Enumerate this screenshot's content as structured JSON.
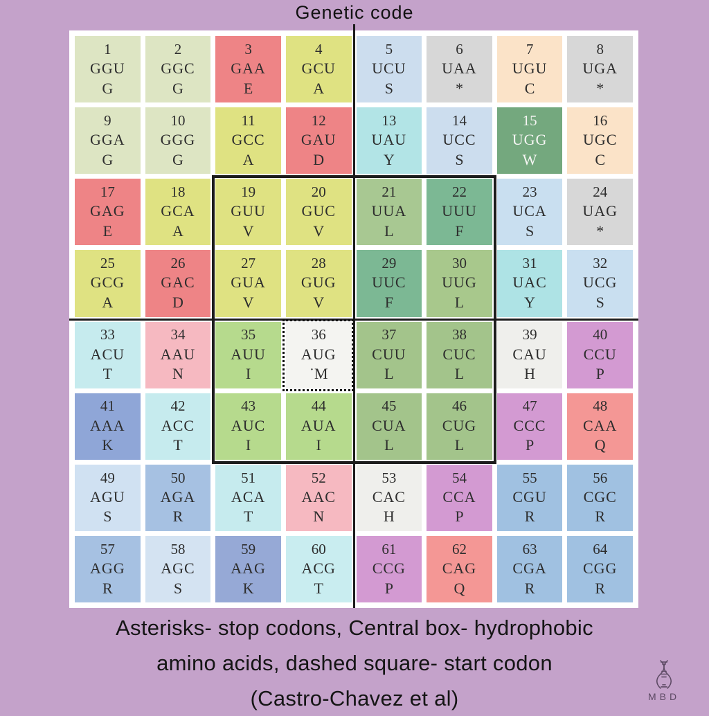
{
  "title": "Genetic code",
  "caption": {
    "line1": "Asterisks- stop codons, Central box- hydrophobic",
    "line2": "amino acids, dashed square- start codon",
    "line3": "(Castro-Chavez et al)"
  },
  "logo": {
    "text": "MBD",
    "icon": "dna-helix-icon"
  },
  "colors": {
    "background": "#c4a2ca",
    "panel": "#ffffff",
    "cell_text": "#2e2e2e",
    "outline": "#1c1c1c"
  },
  "grid": {
    "rows": 8,
    "cols": 8,
    "cells": [
      {
        "n": 1,
        "codon": "GGU",
        "aa": "G",
        "bg": "#dde5c3"
      },
      {
        "n": 2,
        "codon": "GGC",
        "aa": "G",
        "bg": "#dde5c3"
      },
      {
        "n": 3,
        "codon": "GAA",
        "aa": "E",
        "bg": "#ee8486"
      },
      {
        "n": 4,
        "codon": "GCU",
        "aa": "A",
        "bg": "#dfe282"
      },
      {
        "n": 5,
        "codon": "UCU",
        "aa": "S",
        "bg": "#ccddee"
      },
      {
        "n": 6,
        "codon": "UAA",
        "aa": "*",
        "bg": "#d7d7d7"
      },
      {
        "n": 7,
        "codon": "UGU",
        "aa": "C",
        "bg": "#fbe3c8"
      },
      {
        "n": 8,
        "codon": "UGA",
        "aa": "*",
        "bg": "#d7d7d7"
      },
      {
        "n": 9,
        "codon": "GGA",
        "aa": "G",
        "bg": "#dde5c3"
      },
      {
        "n": 10,
        "codon": "GGG",
        "aa": "G",
        "bg": "#dde5c3"
      },
      {
        "n": 11,
        "codon": "GCC",
        "aa": "A",
        "bg": "#dfe282"
      },
      {
        "n": 12,
        "codon": "GAU",
        "aa": "D",
        "bg": "#ee8486"
      },
      {
        "n": 13,
        "codon": "UAU",
        "aa": "Y",
        "bg": "#b2e4e6"
      },
      {
        "n": 14,
        "codon": "UCC",
        "aa": "S",
        "bg": "#ccddee"
      },
      {
        "n": 15,
        "codon": "UGG",
        "aa": "W",
        "bg": "#74a87e",
        "light_text": true
      },
      {
        "n": 16,
        "codon": "UGC",
        "aa": "C",
        "bg": "#fbe3c8"
      },
      {
        "n": 17,
        "codon": "GAG",
        "aa": "E",
        "bg": "#ee8486"
      },
      {
        "n": 18,
        "codon": "GCA",
        "aa": "A",
        "bg": "#dfe282"
      },
      {
        "n": 19,
        "codon": "GUU",
        "aa": "V",
        "bg": "#dfe282"
      },
      {
        "n": 20,
        "codon": "GUC",
        "aa": "V",
        "bg": "#dfe282"
      },
      {
        "n": 21,
        "codon": "UUA",
        "aa": "L",
        "bg": "#a8c892"
      },
      {
        "n": 22,
        "codon": "UUU",
        "aa": "F",
        "bg": "#7cb894"
      },
      {
        "n": 23,
        "codon": "UCA",
        "aa": "S",
        "bg": "#c9dff0"
      },
      {
        "n": 24,
        "codon": "UAG",
        "aa": "*",
        "bg": "#d7d7d7"
      },
      {
        "n": 25,
        "codon": "GCG",
        "aa": "A",
        "bg": "#dfe282"
      },
      {
        "n": 26,
        "codon": "GAC",
        "aa": "D",
        "bg": "#ee8486"
      },
      {
        "n": 27,
        "codon": "GUA",
        "aa": "V",
        "bg": "#dfe282"
      },
      {
        "n": 28,
        "codon": "GUG",
        "aa": "V",
        "bg": "#dfe282"
      },
      {
        "n": 29,
        "codon": "UUC",
        "aa": "F",
        "bg": "#7cb894"
      },
      {
        "n": 30,
        "codon": "UUG",
        "aa": "L",
        "bg": "#a8c88c"
      },
      {
        "n": 31,
        "codon": "UAC",
        "aa": "Y",
        "bg": "#aee3e5"
      },
      {
        "n": 32,
        "codon": "UCG",
        "aa": "S",
        "bg": "#c9dff0"
      },
      {
        "n": 33,
        "codon": "ACU",
        "aa": "T",
        "bg": "#c6ebee"
      },
      {
        "n": 34,
        "codon": "AAU",
        "aa": "N",
        "bg": "#f6b9c1"
      },
      {
        "n": 35,
        "codon": "AUU",
        "aa": "I",
        "bg": "#b6da8d"
      },
      {
        "n": 36,
        "codon": "AUG",
        "aa": "˙M",
        "bg": "#f4f4f1",
        "start_codon": true
      },
      {
        "n": 37,
        "codon": "CUU",
        "aa": "L",
        "bg": "#a3c48b"
      },
      {
        "n": 38,
        "codon": "CUC",
        "aa": "L",
        "bg": "#a3c48b"
      },
      {
        "n": 39,
        "codon": "CAU",
        "aa": "H",
        "bg": "#efefec"
      },
      {
        "n": 40,
        "codon": "CCU",
        "aa": "P",
        "bg": "#d39ad2"
      },
      {
        "n": 41,
        "codon": "AAA",
        "aa": "K",
        "bg": "#8fa6d7"
      },
      {
        "n": 42,
        "codon": "ACC",
        "aa": "T",
        "bg": "#c6ebee"
      },
      {
        "n": 43,
        "codon": "AUC",
        "aa": "I",
        "bg": "#b6da8d"
      },
      {
        "n": 44,
        "codon": "AUA",
        "aa": "I",
        "bg": "#b6da8d"
      },
      {
        "n": 45,
        "codon": "CUA",
        "aa": "L",
        "bg": "#a3c48b"
      },
      {
        "n": 46,
        "codon": "CUG",
        "aa": "L",
        "bg": "#a3c48b"
      },
      {
        "n": 47,
        "codon": "CCC",
        "aa": "P",
        "bg": "#d39ad2"
      },
      {
        "n": 48,
        "codon": "CAA",
        "aa": "Q",
        "bg": "#f49795"
      },
      {
        "n": 49,
        "codon": "AGU",
        "aa": "S",
        "bg": "#d0e1f2"
      },
      {
        "n": 50,
        "codon": "AGA",
        "aa": "R",
        "bg": "#a6c1e2"
      },
      {
        "n": 51,
        "codon": "ACA",
        "aa": "T",
        "bg": "#c6ebee"
      },
      {
        "n": 52,
        "codon": "AAC",
        "aa": "N",
        "bg": "#f6b9c1"
      },
      {
        "n": 53,
        "codon": "CAC",
        "aa": "H",
        "bg": "#efefec"
      },
      {
        "n": 54,
        "codon": "CCA",
        "aa": "P",
        "bg": "#d39ad2"
      },
      {
        "n": 55,
        "codon": "CGU",
        "aa": "R",
        "bg": "#a0c1e1"
      },
      {
        "n": 56,
        "codon": "CGC",
        "aa": "R",
        "bg": "#a0c1e1"
      },
      {
        "n": 57,
        "codon": "AGG",
        "aa": "R",
        "bg": "#a6c1e2"
      },
      {
        "n": 58,
        "codon": "AGC",
        "aa": "S",
        "bg": "#d4e3f2"
      },
      {
        "n": 59,
        "codon": "AAG",
        "aa": "K",
        "bg": "#96a9d6"
      },
      {
        "n": 60,
        "codon": "ACG",
        "aa": "T",
        "bg": "#c9edf0"
      },
      {
        "n": 61,
        "codon": "CCG",
        "aa": "P",
        "bg": "#d39ad2"
      },
      {
        "n": 62,
        "codon": "CAG",
        "aa": "Q",
        "bg": "#f49795"
      },
      {
        "n": 63,
        "codon": "CGA",
        "aa": "R",
        "bg": "#a0c1e1"
      },
      {
        "n": 64,
        "codon": "CGG",
        "aa": "R",
        "bg": "#a0c1e1"
      }
    ]
  }
}
